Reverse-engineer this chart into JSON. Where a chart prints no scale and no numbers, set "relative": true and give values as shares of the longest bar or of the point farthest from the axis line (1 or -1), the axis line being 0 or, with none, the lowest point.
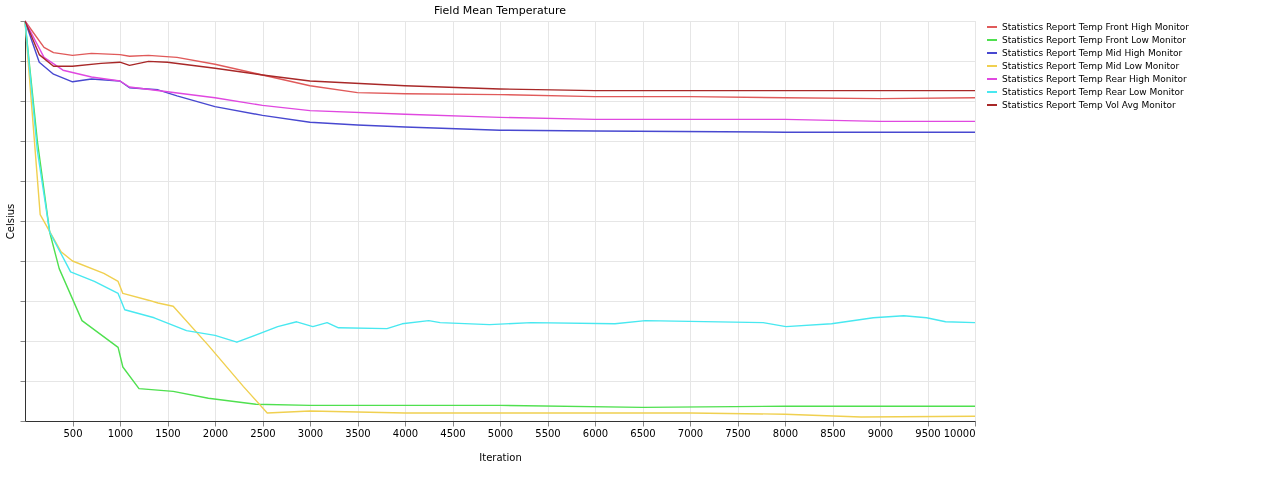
{
  "chart_data": {
    "type": "line",
    "title": "Field Mean Temperature",
    "xlabel": "Iteration",
    "ylabel": "Celsius",
    "relative": true,
    "xlim": [
      0,
      10000
    ],
    "xticks": [
      500,
      1000,
      1500,
      2000,
      2500,
      3000,
      3500,
      4000,
      4500,
      5000,
      5500,
      6000,
      6500,
      7000,
      7500,
      8000,
      8500,
      9000,
      9500,
      10000
    ],
    "grid": true,
    "legend": "right",
    "marker": "none",
    "line_style": "solid",
    "series": [
      {
        "name": "Statistics Report Temp Front High Monitor",
        "color": "#e05a5a",
        "x": [
          0,
          200,
          300,
          500,
          700,
          1000,
          1100,
          1300,
          1600,
          2000,
          2500,
          3000,
          3500,
          4000,
          5000,
          6000,
          7000,
          8000,
          9000,
          10000
        ],
        "values": [
          1.0,
          0.934,
          0.921,
          0.914,
          0.919,
          0.916,
          0.912,
          0.914,
          0.909,
          0.892,
          0.865,
          0.838,
          0.821,
          0.818,
          0.816,
          0.811,
          0.811,
          0.808,
          0.806,
          0.808
        ]
      },
      {
        "name": "Statistics Report Temp Front Low Monitor",
        "color": "#4fe04f",
        "x": [
          0,
          130,
          260,
          360,
          600,
          980,
          1030,
          1200,
          1560,
          1930,
          2430,
          3000,
          4000,
          5000,
          6500,
          8000,
          10000
        ],
        "values": [
          1.0,
          0.7,
          0.472,
          0.381,
          0.251,
          0.184,
          0.135,
          0.081,
          0.074,
          0.057,
          0.042,
          0.039,
          0.039,
          0.039,
          0.034,
          0.037,
          0.037
        ]
      },
      {
        "name": "Statistics Report Temp Mid High Monitor",
        "color": "#4848d0",
        "x": [
          0,
          150,
          300,
          500,
          700,
          1000,
          1100,
          1400,
          1600,
          2000,
          2500,
          3000,
          3500,
          4000,
          5000,
          6000,
          8000,
          10000
        ],
        "values": [
          1.0,
          0.897,
          0.867,
          0.848,
          0.855,
          0.85,
          0.833,
          0.828,
          0.813,
          0.786,
          0.764,
          0.747,
          0.74,
          0.735,
          0.727,
          0.725,
          0.722,
          0.722
        ]
      },
      {
        "name": "Statistics Report Temp Mid Low Monitor",
        "color": "#f0d050",
        "x": [
          0,
          160,
          380,
          500,
          830,
          980,
          1030,
          1300,
          1400,
          1560,
          1930,
          2300,
          2550,
          3000,
          4000,
          5000,
          6000,
          7000,
          8000,
          8800,
          10000
        ],
        "values": [
          1.0,
          0.516,
          0.423,
          0.4,
          0.369,
          0.349,
          0.319,
          0.302,
          0.295,
          0.287,
          0.189,
          0.086,
          0.02,
          0.025,
          0.02,
          0.02,
          0.02,
          0.02,
          0.017,
          0.01,
          0.012
        ]
      },
      {
        "name": "Statistics Report Temp Rear High Monitor",
        "color": "#e048e0",
        "x": [
          0,
          200,
          400,
          700,
          1000,
          1100,
          1500,
          2000,
          2500,
          3000,
          4000,
          5000,
          6000,
          7000,
          8000,
          9000,
          10000
        ],
        "values": [
          1.0,
          0.909,
          0.877,
          0.86,
          0.85,
          0.835,
          0.823,
          0.808,
          0.789,
          0.776,
          0.767,
          0.759,
          0.754,
          0.754,
          0.754,
          0.749,
          0.749
        ]
      },
      {
        "name": "Statistics Report Temp Rear Low Monitor",
        "color": "#48e8f0",
        "x": [
          0,
          130,
          260,
          480,
          730,
          980,
          1050,
          1360,
          1700,
          2000,
          2230,
          2660,
          2860,
          3030,
          3180,
          3300,
          3810,
          3970,
          4250,
          4370,
          4890,
          5330,
          6210,
          6530,
          7770,
          8010,
          8490,
          8930,
          9250,
          9490,
          9690,
          10000
        ],
        "values": [
          1.0,
          0.676,
          0.472,
          0.373,
          0.349,
          0.319,
          0.278,
          0.258,
          0.226,
          0.214,
          0.197,
          0.236,
          0.248,
          0.236,
          0.246,
          0.233,
          0.231,
          0.243,
          0.251,
          0.246,
          0.241,
          0.246,
          0.243,
          0.251,
          0.246,
          0.236,
          0.243,
          0.258,
          0.263,
          0.258,
          0.248,
          0.246
        ]
      },
      {
        "name": "Statistics Report Temp Vol Avg Monitor",
        "color": "#a82828",
        "x": [
          0,
          150,
          300,
          500,
          800,
          1000,
          1100,
          1300,
          1500,
          2000,
          2500,
          3000,
          4000,
          5000,
          6000,
          8000,
          10000
        ],
        "values": [
          1.0,
          0.916,
          0.887,
          0.887,
          0.894,
          0.897,
          0.889,
          0.899,
          0.897,
          0.882,
          0.865,
          0.85,
          0.838,
          0.83,
          0.826,
          0.826,
          0.826
        ]
      }
    ]
  }
}
